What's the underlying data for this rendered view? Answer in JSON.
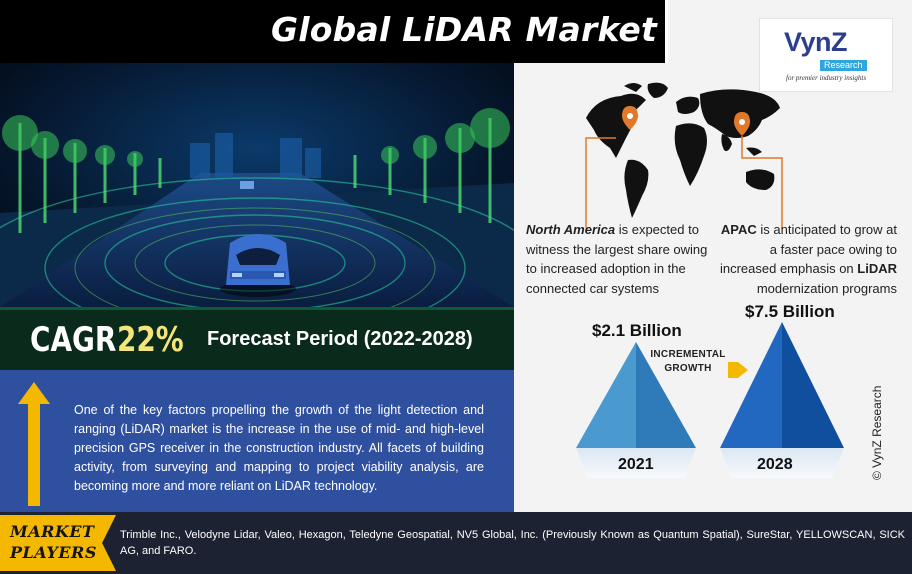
{
  "title": "Global LiDAR Market",
  "logo": {
    "name": "VynZ",
    "badge": "Research",
    "tagline": "for premier industry insights"
  },
  "cagr": {
    "label": "CAGR",
    "value": "22%",
    "forecast": "Forecast Period (2022-2028)"
  },
  "description": "One of the key factors propelling the growth of the light detection and ranging (LiDAR) market is the increase in the use of mid- and high-level precision GPS receiver in the construction industry. All facets of building activity, from surveying and mapping to project viability analysis, are becoming more and more reliant on LiDAR technology.",
  "regions": {
    "north_america": {
      "name": "North America",
      "text": " is expected to witness the largest share owing to increased adoption in the connected car systems"
    },
    "apac": {
      "name": "APAC",
      "text_before": " is anticipated to grow at a faster pace owing to increased emphasis on ",
      "highlight": "LiDAR",
      "text_after": " modernization programs"
    }
  },
  "growth": {
    "value_2021": "$2.1 Billion",
    "value_2028": "$7.5 Billion",
    "year_2021": "2021",
    "year_2028": "2028",
    "label_line1": "INCREMENTAL",
    "label_line2": "GROWTH"
  },
  "copyright": "© VynZ Research",
  "players": {
    "label_line1": "MARKET",
    "label_line2": "PLAYERS",
    "list": "Trimble Inc., Velodyne Lidar, Valeo, Hexagon, Teledyne Geospatial, NV5 Global, Inc. (Previously Known as Quantum Spatial), SureStar, YELLOWSCAN, SICK AG, and FARO."
  },
  "colors": {
    "title_bg": "#000000",
    "cagr_bg": "#0a2a1c",
    "cagr_value": "#f4e57a",
    "info_bg": "#2f4f9f",
    "players_bg": "#1d2233",
    "players_tag": "#f5b800",
    "pyramid_light": "#3d8fc4",
    "pyramid_dark": "#1659a8",
    "arrow": "#f5b800",
    "pin": "#e07a2a"
  }
}
